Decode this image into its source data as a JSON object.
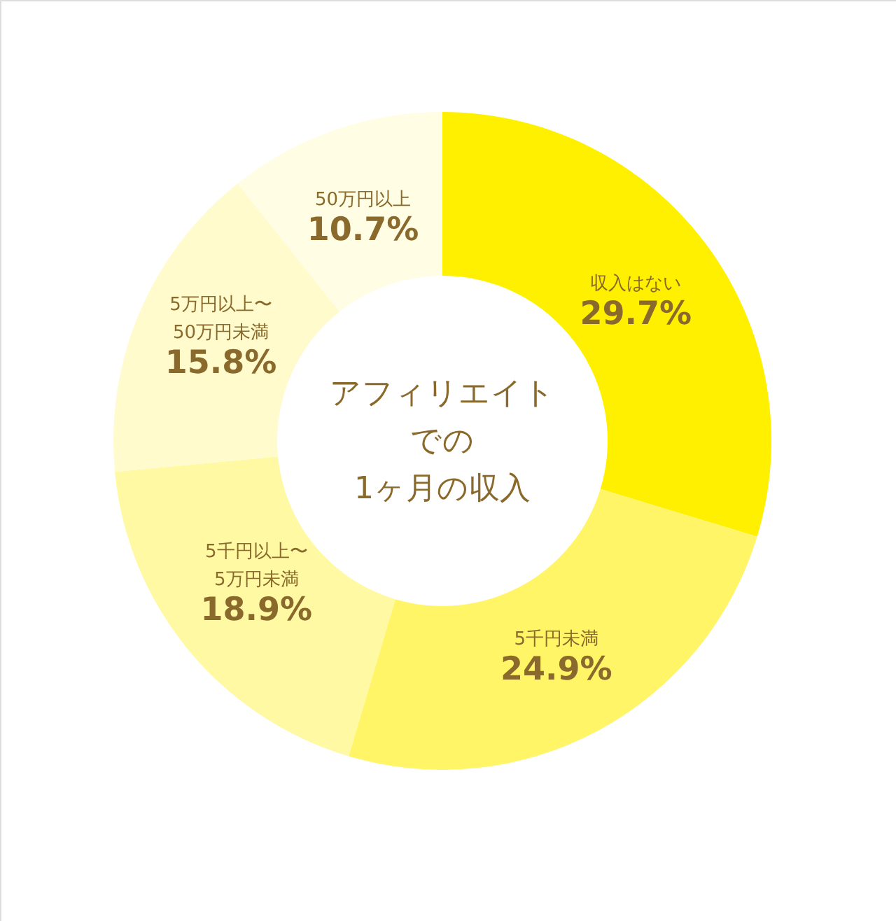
{
  "chart_data": {
    "type": "donut",
    "annotations": [
      "アフィリエイト",
      "での",
      "1ヶ月の収入"
    ],
    "categories": [
      "収入はない",
      "5千円未満",
      "5千円以上〜\n5万円未満",
      "5万円以上〜\n50万円未満",
      "50万円以上"
    ],
    "values": [
      29.7,
      24.9,
      18.9,
      15.8,
      10.7
    ],
    "colors": [
      "#fff000",
      "#fff566",
      "#fff9a3",
      "#fffbcc",
      "#fffde3"
    ],
    "value_labels": [
      "29.7%",
      "24.9%",
      "18.9%",
      "15.8%",
      "10.7%"
    ]
  }
}
